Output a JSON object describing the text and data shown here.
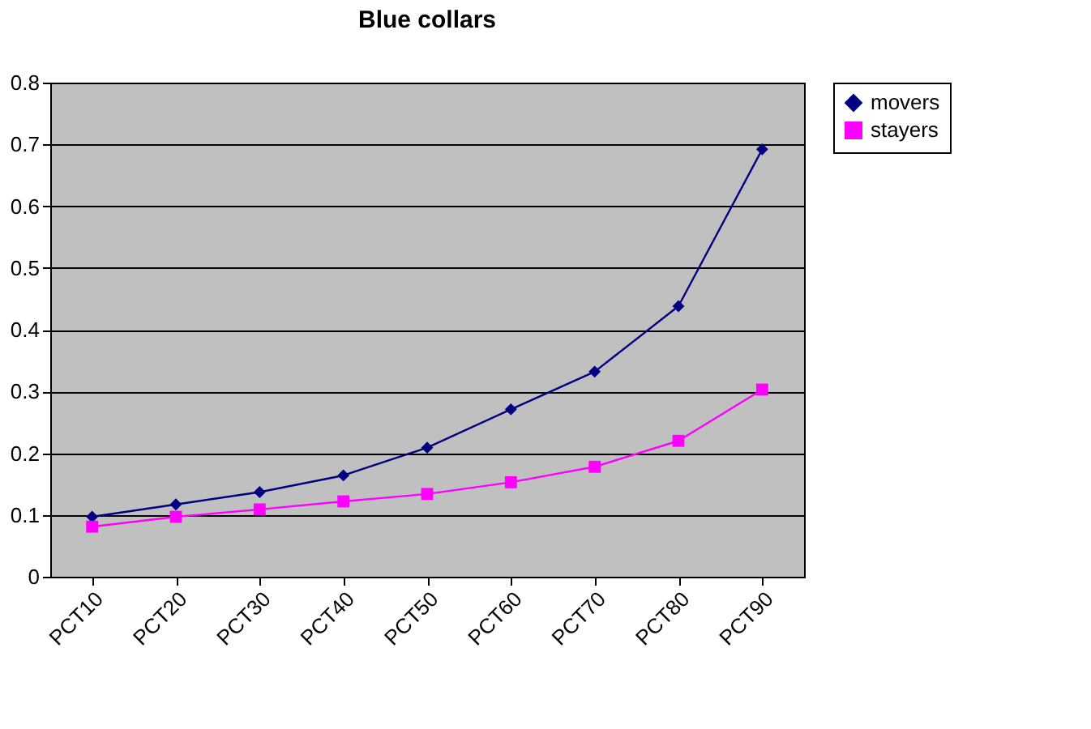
{
  "chart_data": {
    "type": "line",
    "title": "Blue collars",
    "categories": [
      "PCT10",
      "PCT20",
      "PCT30",
      "PCT40",
      "PCT50",
      "PCT60",
      "PCT70",
      "PCT80",
      "PCT90"
    ],
    "series": [
      {
        "name": "movers",
        "color": "#000080",
        "marker": "diamond",
        "values": [
          0.097,
          0.117,
          0.137,
          0.164,
          0.209,
          0.271,
          0.332,
          0.438,
          0.692
        ]
      },
      {
        "name": "stayers",
        "color": "#ff00ff",
        "marker": "square",
        "values": [
          0.081,
          0.097,
          0.109,
          0.122,
          0.134,
          0.153,
          0.178,
          0.22,
          0.303
        ]
      }
    ],
    "ylim": [
      0,
      0.8
    ],
    "yticks": [
      0,
      0.1,
      0.2,
      0.3,
      0.4,
      0.5,
      0.6,
      0.7,
      0.8
    ],
    "grid": "y",
    "legend": "right",
    "line_style": "solid"
  }
}
